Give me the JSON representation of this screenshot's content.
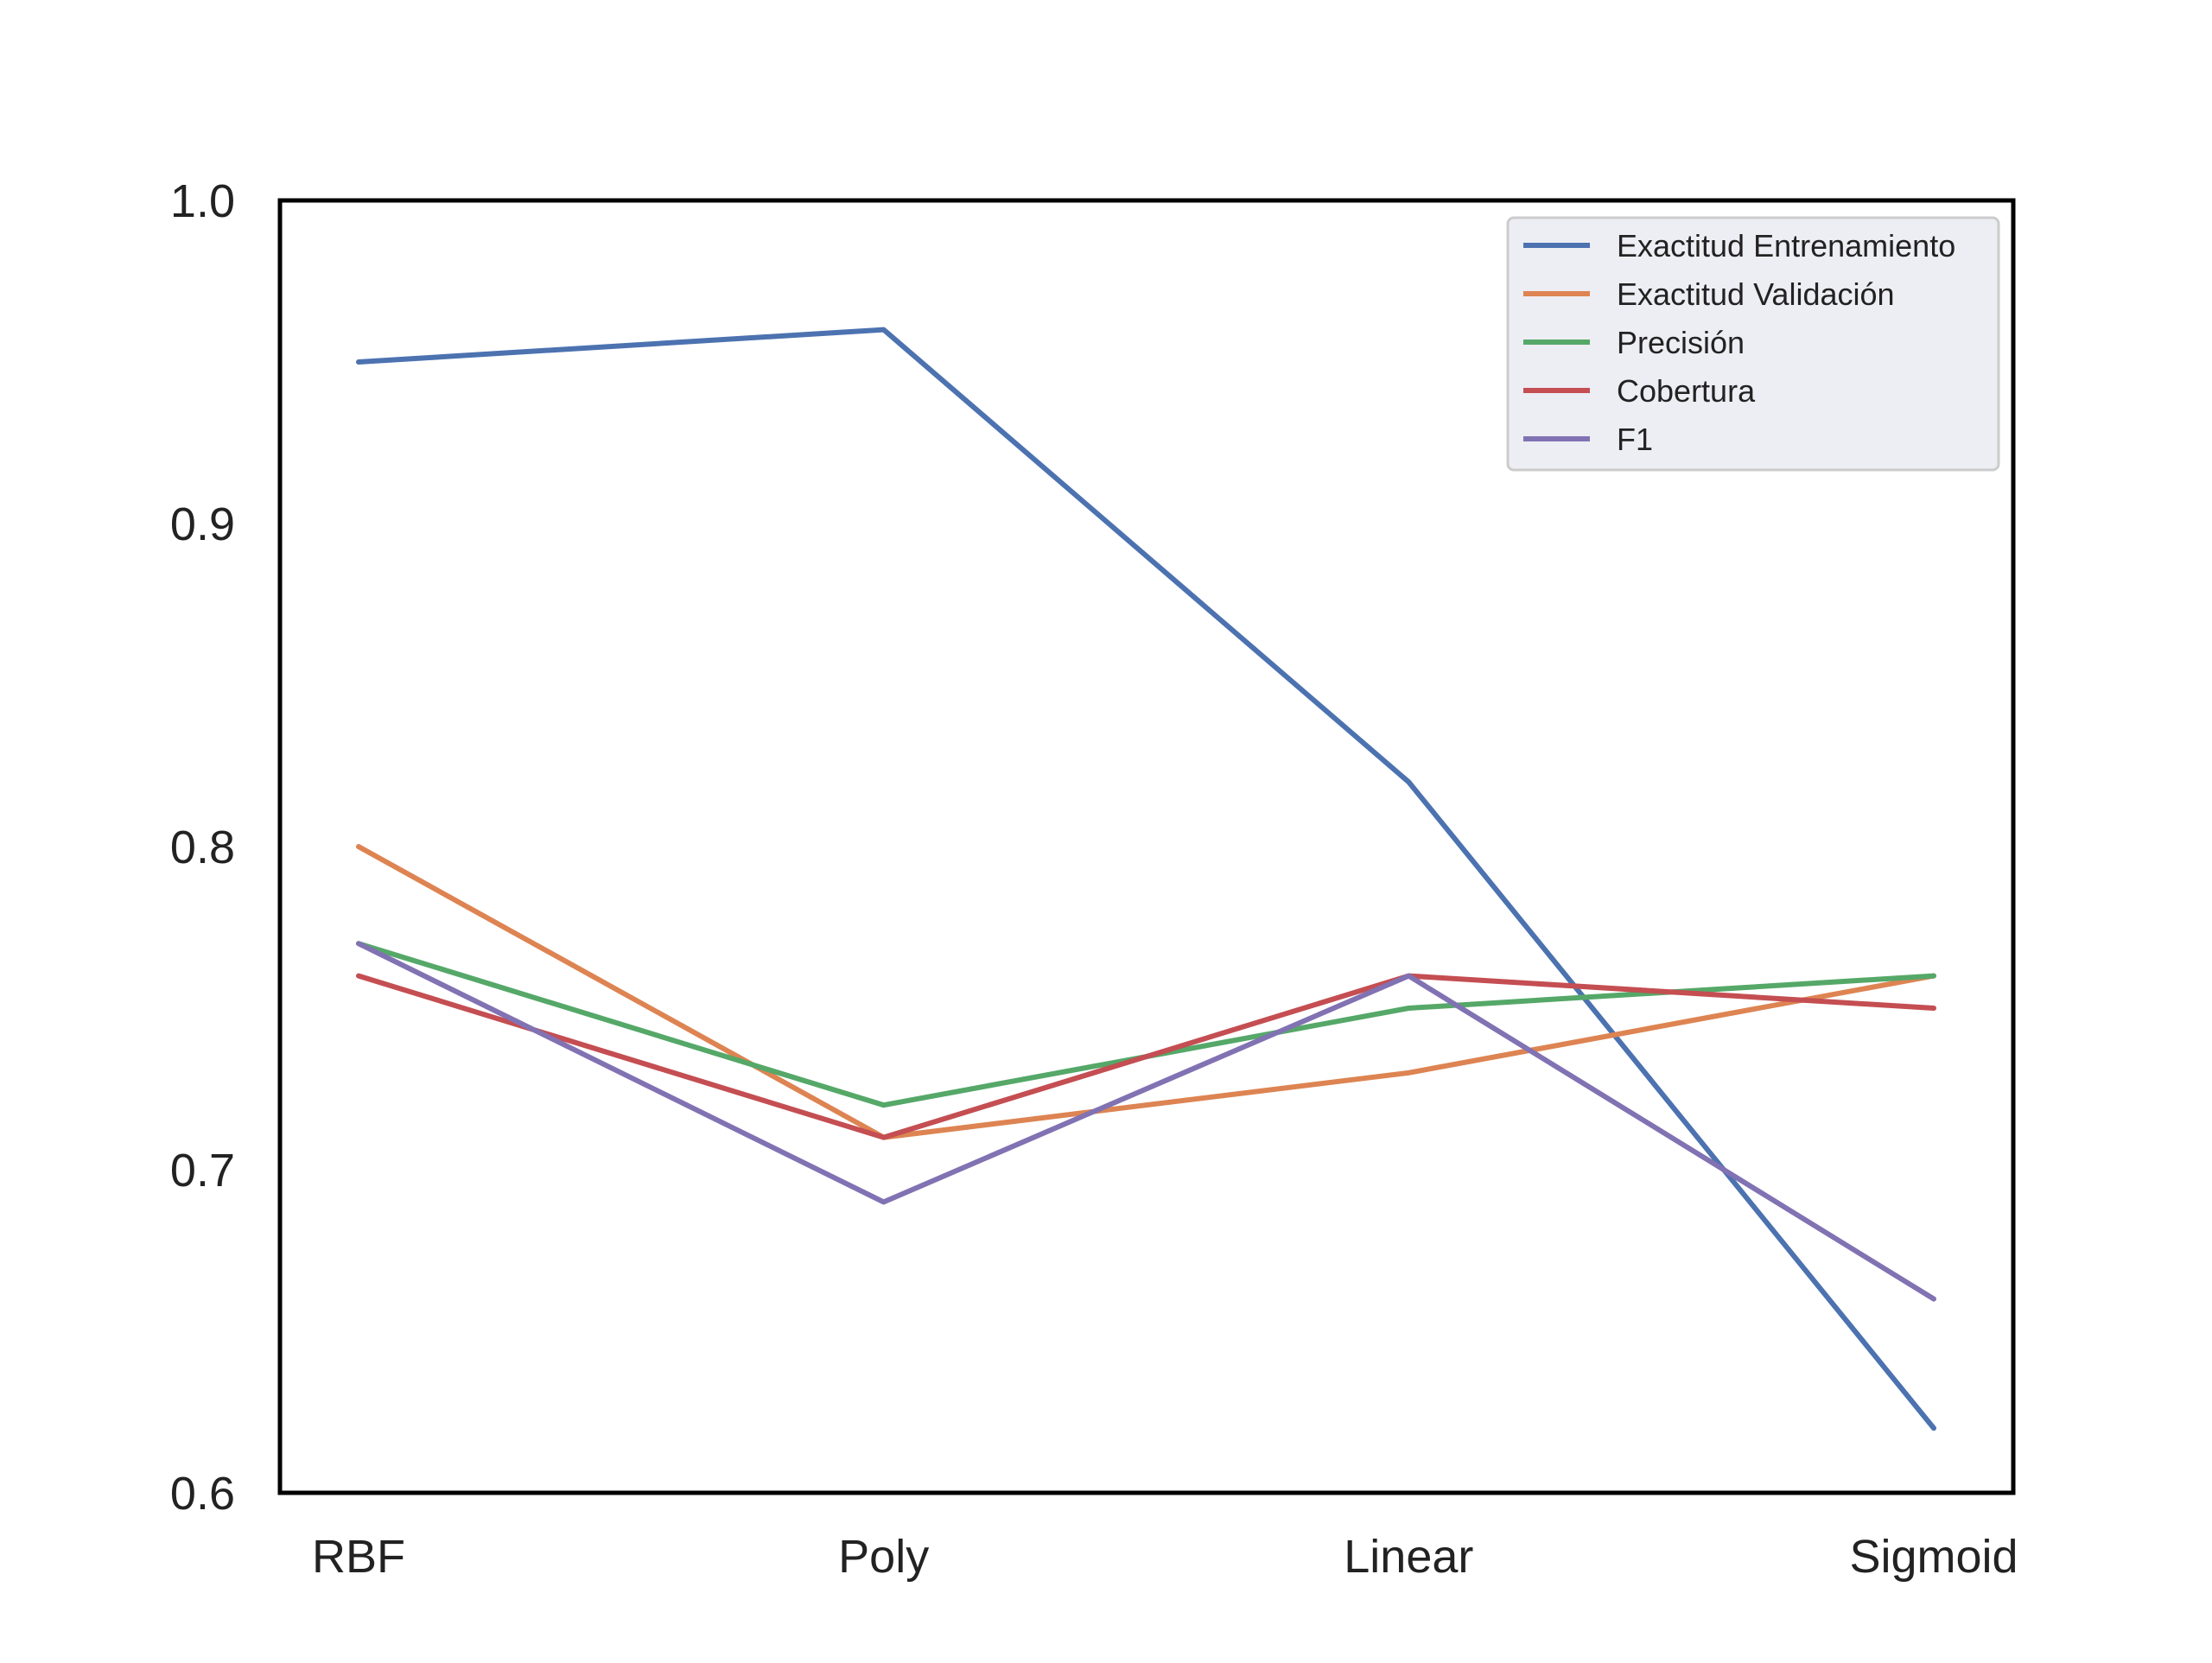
{
  "chart_data": {
    "type": "line",
    "categories": [
      "RBF",
      "Poly",
      "Linear",
      "Sigmoid"
    ],
    "series": [
      {
        "name": "Exactitud Entrenamiento",
        "color": "#4C72B0",
        "values": [
          0.95,
          0.96,
          0.82,
          0.62
        ]
      },
      {
        "name": "Exactitud Validación",
        "color": "#DD8452",
        "values": [
          0.8,
          0.71,
          0.73,
          0.76
        ]
      },
      {
        "name": "Precisión",
        "color": "#55A868",
        "values": [
          0.77,
          0.72,
          0.75,
          0.76
        ]
      },
      {
        "name": "Cobertura",
        "color": "#C44E52",
        "values": [
          0.76,
          0.71,
          0.76,
          0.75
        ]
      },
      {
        "name": "F1",
        "color": "#8172B3",
        "values": [
          0.77,
          0.69,
          0.76,
          0.66
        ]
      }
    ],
    "ylim": [
      0.6,
      1.0
    ],
    "yticks": [
      "0.6",
      "0.7",
      "0.8",
      "0.9",
      "1.0"
    ],
    "title": "",
    "xlabel": "",
    "ylabel": "",
    "grid": false,
    "legend_position": "top-right"
  }
}
